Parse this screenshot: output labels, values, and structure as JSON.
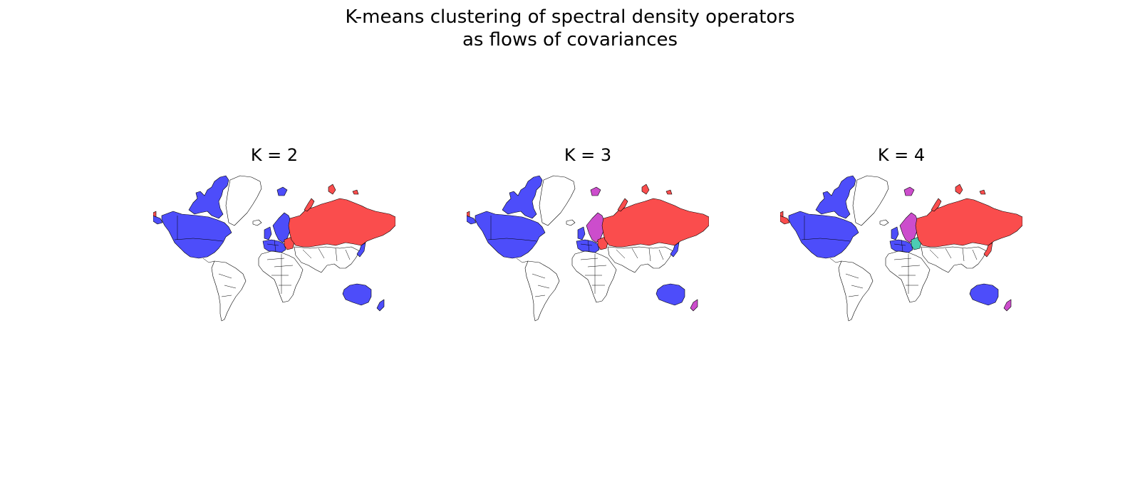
{
  "figure": {
    "suptitle_line1": "K-means clustering of spectral density operators",
    "suptitle_line2": "as flows of covariances"
  },
  "colors": {
    "cluster_blue": "#4d4dfa",
    "cluster_red": "#fa4d4d",
    "cluster_magenta": "#cc4dcc",
    "cluster_teal": "#4dccb3",
    "unclustered": "#ffffff",
    "outline": "#000000"
  },
  "panels": [
    {
      "title": "K = 2",
      "assignments": {
        "north_america": "cluster_blue",
        "alaska": "cluster_blue",
        "canadian_arctic": "cluster_blue",
        "svalbard": "cluster_blue",
        "scandinavia": "cluster_blue",
        "western_europe": "cluster_blue",
        "uk_ireland": "cluster_blue",
        "central_europe": "cluster_red",
        "russia": "cluster_red",
        "novaya_zemlya": "cluster_red",
        "russia_islands": "cluster_red",
        "chukotka": "cluster_red",
        "japan": "cluster_blue",
        "australia": "cluster_blue",
        "new_zealand": "cluster_blue",
        "iceland": "unclustered",
        "greenland": "unclustered",
        "south_america": "unclustered",
        "africa": "unclustered",
        "asia_south": "unclustered"
      }
    },
    {
      "title": "K = 3",
      "assignments": {
        "north_america": "cluster_blue",
        "alaska": "cluster_blue",
        "canadian_arctic": "cluster_blue",
        "svalbard": "cluster_magenta",
        "scandinavia": "cluster_magenta",
        "western_europe": "cluster_blue",
        "uk_ireland": "cluster_blue",
        "central_europe": "cluster_red",
        "russia": "cluster_red",
        "novaya_zemlya": "cluster_red",
        "russia_islands": "cluster_red",
        "chukotka": "cluster_red",
        "japan": "cluster_blue",
        "australia": "cluster_blue",
        "new_zealand": "cluster_magenta",
        "iceland": "unclustered",
        "greenland": "unclustered",
        "south_america": "unclustered",
        "africa": "unclustered",
        "asia_south": "unclustered"
      }
    },
    {
      "title": "K = 4",
      "assignments": {
        "north_america": "cluster_blue",
        "alaska": "cluster_red",
        "canadian_arctic": "cluster_blue",
        "svalbard": "cluster_magenta",
        "scandinavia": "cluster_magenta",
        "western_europe": "cluster_blue",
        "uk_ireland": "cluster_blue",
        "central_europe": "cluster_teal",
        "russia": "cluster_red",
        "novaya_zemlya": "cluster_red",
        "russia_islands": "cluster_red",
        "chukotka": "cluster_red",
        "japan": "cluster_red",
        "australia": "cluster_blue",
        "new_zealand": "cluster_magenta",
        "iceland": "unclustered",
        "greenland": "unclustered",
        "south_america": "unclustered",
        "africa": "unclustered",
        "asia_south": "unclustered"
      }
    }
  ]
}
